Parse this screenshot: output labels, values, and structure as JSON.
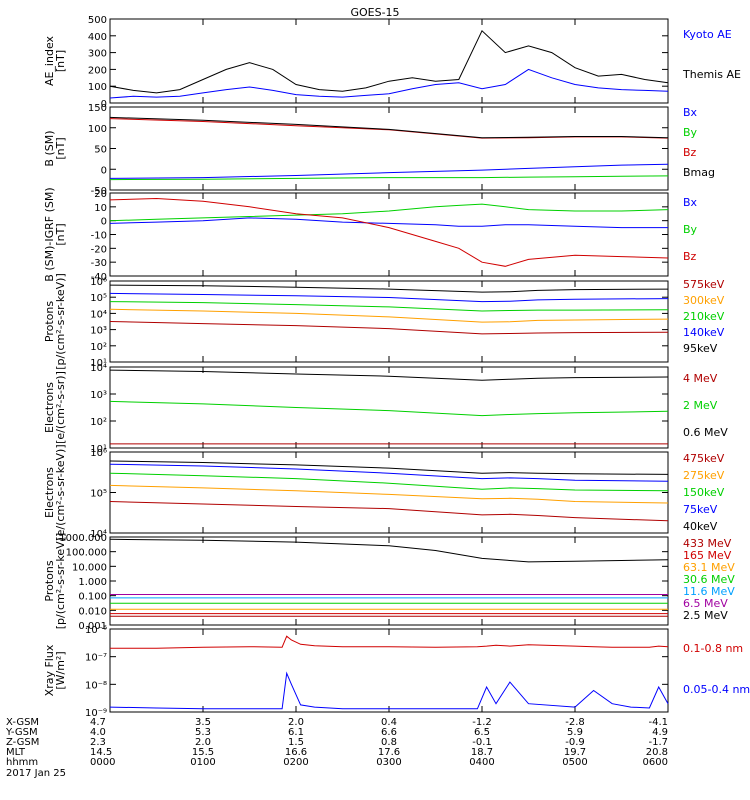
{
  "title": "GOES-15",
  "date": "2017 Jan 25",
  "ephemeris": {
    "row_labels": [
      "X-GSM",
      "Y-GSM",
      "Z-GSM",
      "MLT",
      "hhmm"
    ],
    "rows": [
      [
        "4.7",
        "3.5",
        "2.0",
        "0.4",
        "-1.2",
        "-2.8",
        "-4.1"
      ],
      [
        "4.0",
        "5.3",
        "6.1",
        "6.6",
        "6.5",
        "5.9",
        "4.9"
      ],
      [
        "2.3",
        "2.0",
        "1.5",
        "0.8",
        "-0.1",
        "-0.9",
        "-1.7"
      ],
      [
        "14.5",
        "15.5",
        "16.6",
        "17.6",
        "18.7",
        "19.7",
        "20.8"
      ],
      [
        "0000",
        "0100",
        "0200",
        "0300",
        "0400",
        "0500",
        "0600"
      ]
    ]
  },
  "colors": {
    "black": "#000000",
    "blue": "#0000ff",
    "green": "#00d000",
    "red": "#d00000",
    "darkred": "#b00000",
    "orange": "#ffa000",
    "lightblue": "#00a0ff",
    "purple": "#a000a0",
    "axis": "#000000"
  },
  "chart_data": [
    {
      "type": "line",
      "id": "ae",
      "ylabel": "AE_index\n[nT]",
      "ylim": [
        0,
        500
      ],
      "yticks": [
        "0",
        "100",
        "200",
        "300",
        "400",
        "500"
      ],
      "x": [
        0,
        0.25,
        0.5,
        0.75,
        1.0,
        1.25,
        1.5,
        1.75,
        2.0,
        2.25,
        2.5,
        2.75,
        3.0,
        3.25,
        3.5,
        3.75,
        4.0,
        4.25,
        4.5,
        4.75,
        5.0,
        5.25,
        5.5,
        5.75,
        6.0
      ],
      "series": [
        {
          "name": "Kyoto AE",
          "color": "blue",
          "values": [
            30,
            40,
            35,
            40,
            60,
            80,
            95,
            75,
            50,
            40,
            35,
            45,
            55,
            85,
            110,
            120,
            85,
            110,
            200,
            150,
            110,
            90,
            80,
            75,
            70
          ]
        },
        {
          "name": "Themis AE",
          "color": "black",
          "values": [
            100,
            75,
            60,
            80,
            140,
            200,
            240,
            200,
            110,
            80,
            70,
            90,
            130,
            150,
            130,
            140,
            430,
            300,
            340,
            300,
            210,
            160,
            170,
            140,
            120
          ]
        }
      ]
    },
    {
      "type": "line",
      "id": "bsm",
      "ylabel": "B (SM)\n[nT]",
      "ylim": [
        -50,
        150
      ],
      "yticks": [
        "-50",
        "0",
        "50",
        "100",
        "150"
      ],
      "x": [
        0,
        1,
        2,
        3,
        4,
        4.5,
        5,
        5.5,
        6
      ],
      "series": [
        {
          "name": "Bx",
          "color": "blue",
          "values": [
            -22,
            -20,
            -15,
            -8,
            -2,
            2,
            6,
            10,
            12
          ]
        },
        {
          "name": "By",
          "color": "green",
          "values": [
            -25,
            -24,
            -22,
            -20,
            -20,
            -19,
            -18,
            -17,
            -16
          ]
        },
        {
          "name": "Bz",
          "color": "red",
          "values": [
            122,
            115,
            105,
            95,
            75,
            76,
            78,
            78,
            75
          ]
        },
        {
          "name": "Bmag",
          "color": "black",
          "values": [
            125,
            118,
            108,
            96,
            76,
            77,
            79,
            79,
            76
          ]
        }
      ]
    },
    {
      "type": "line",
      "id": "bigrf",
      "ylabel": "B (SM)-IGRF (SM)\n[nT]",
      "ylim": [
        -40,
        20
      ],
      "yticks": [
        "-40",
        "-30",
        "-20",
        "-10",
        "0",
        "10",
        "20"
      ],
      "x": [
        0,
        0.5,
        1.0,
        1.5,
        2.0,
        2.5,
        3.0,
        3.5,
        3.75,
        4.0,
        4.25,
        4.5,
        5.0,
        5.5,
        6.0
      ],
      "series": [
        {
          "name": "Bx",
          "color": "blue",
          "values": [
            -2,
            -1,
            0,
            2,
            1,
            -1,
            -2,
            -3,
            -4,
            -4,
            -3,
            -3,
            -4,
            -5,
            -5
          ]
        },
        {
          "name": "By",
          "color": "green",
          "values": [
            0,
            1,
            2,
            3,
            4,
            5,
            7,
            10,
            11,
            12,
            10,
            8,
            7,
            7,
            8
          ]
        },
        {
          "name": "Bz",
          "color": "red",
          "values": [
            15,
            16,
            14,
            10,
            5,
            2,
            -5,
            -15,
            -20,
            -30,
            -33,
            -28,
            -25,
            -26,
            -27
          ]
        }
      ]
    },
    {
      "type": "line",
      "id": "protons-mag",
      "log": true,
      "ylabel": "Protons\n[p/(cm²-s-sr-keV)]",
      "ylim": [
        1,
        1000000
      ],
      "yticks": [
        "10¹",
        "10²",
        "10³",
        "10⁴",
        "10⁵",
        "10⁶"
      ],
      "x": [
        0,
        1,
        2,
        3,
        4,
        4.3,
        4.6,
        5,
        6
      ],
      "series": [
        {
          "name": "575keV",
          "color": "darkred",
          "values": [
            1000,
            700,
            500,
            300,
            120,
            130,
            140,
            150,
            160
          ]
        },
        {
          "name": "300keV",
          "color": "orange",
          "values": [
            8000,
            6000,
            4000,
            2200,
            900,
            950,
            1200,
            1300,
            1500
          ]
        },
        {
          "name": "210keV",
          "color": "green",
          "values": [
            30000,
            25000,
            18000,
            12000,
            6000,
            6500,
            7000,
            7000,
            7500
          ]
        },
        {
          "name": "140keV",
          "color": "blue",
          "values": [
            120000,
            100000,
            80000,
            60000,
            30000,
            32000,
            40000,
            45000,
            50000
          ]
        },
        {
          "name": "95keV",
          "color": "black",
          "values": [
            500000,
            450000,
            350000,
            250000,
            150000,
            160000,
            200000,
            230000,
            250000
          ]
        }
      ]
    },
    {
      "type": "line",
      "id": "electrons-mev",
      "log": true,
      "ylabel": "Electrons\n[e/(cm²-s-sr)]",
      "ylim": [
        10,
        100000
      ],
      "yticks": [
        "10¹",
        "10²",
        "10³",
        "10⁴"
      ],
      "x": [
        0,
        1,
        2,
        3,
        4,
        4.3,
        4.6,
        5,
        6
      ],
      "series": [
        {
          "name": "4 MeV",
          "color": "darkred",
          "values": [
            16,
            16,
            16,
            16,
            16,
            16,
            16,
            16,
            16
          ]
        },
        {
          "name": "2 MeV",
          "color": "green",
          "values": [
            2000,
            1500,
            1000,
            700,
            400,
            450,
            500,
            550,
            650
          ]
        },
        {
          "name": "0.6 MeV",
          "color": "black",
          "values": [
            70000,
            60000,
            45000,
            35000,
            22000,
            25000,
            28000,
            30000,
            32000
          ]
        }
      ]
    },
    {
      "type": "line",
      "id": "electrons-kev",
      "log": true,
      "ylabel": "Electrons\n[e/(cm²-s-sr-keV)]",
      "ylim": [
        10000,
        1000000
      ],
      "yticks": [
        "10⁴",
        "10⁵",
        "10⁶"
      ],
      "x": [
        0,
        1,
        2,
        3,
        4,
        4.3,
        4.6,
        5,
        6
      ],
      "series": [
        {
          "name": "475keV",
          "color": "darkred",
          "values": [
            60000,
            52000,
            45000,
            40000,
            28000,
            29000,
            27000,
            24000,
            20000
          ]
        },
        {
          "name": "275keV",
          "color": "orange",
          "values": [
            150000,
            130000,
            110000,
            90000,
            70000,
            72000,
            68000,
            60000,
            55000
          ]
        },
        {
          "name": "150keV",
          "color": "green",
          "values": [
            300000,
            260000,
            220000,
            170000,
            120000,
            130000,
            125000,
            115000,
            110000
          ]
        },
        {
          "name": "75keV",
          "color": "blue",
          "values": [
            500000,
            450000,
            380000,
            300000,
            220000,
            230000,
            220000,
            200000,
            190000
          ]
        },
        {
          "name": "40keV",
          "color": "black",
          "values": [
            600000,
            550000,
            480000,
            400000,
            300000,
            310000,
            300000,
            290000,
            280000
          ]
        }
      ]
    },
    {
      "type": "line",
      "id": "protons-hi",
      "log": true,
      "ylabel": "Protons\n[p/(cm²-s-sr-keV)]",
      "ylim": [
        0.001,
        1000
      ],
      "yticks": [
        "0.001",
        "0.010",
        "0.100",
        "1.000",
        "10.000",
        "100.000",
        "1000.000"
      ],
      "x": [
        0,
        1,
        2,
        3,
        3.5,
        4,
        4.5,
        5,
        5.5,
        6
      ],
      "series": [
        {
          "name": "433 MeV",
          "color": "darkred",
          "values": [
            0.004,
            0.004,
            0.004,
            0.004,
            0.004,
            0.004,
            0.004,
            0.004,
            0.004,
            0.004
          ]
        },
        {
          "name": "165 MeV",
          "color": "red",
          "values": [
            0.006,
            0.006,
            0.006,
            0.006,
            0.006,
            0.006,
            0.006,
            0.006,
            0.006,
            0.006
          ]
        },
        {
          "name": "63.1 MeV",
          "color": "orange",
          "values": [
            0.012,
            0.012,
            0.012,
            0.012,
            0.012,
            0.012,
            0.012,
            0.012,
            0.012,
            0.012
          ]
        },
        {
          "name": "30.6 MeV",
          "color": "green",
          "values": [
            0.03,
            0.03,
            0.03,
            0.03,
            0.03,
            0.03,
            0.03,
            0.03,
            0.03,
            0.03
          ]
        },
        {
          "name": "11.6 MeV",
          "color": "lightblue",
          "values": [
            0.07,
            0.07,
            0.07,
            0.07,
            0.07,
            0.07,
            0.07,
            0.07,
            0.07,
            0.07
          ]
        },
        {
          "name": "6.5 MeV",
          "color": "purple",
          "values": [
            0.12,
            0.12,
            0.12,
            0.12,
            0.12,
            0.12,
            0.12,
            0.12,
            0.12,
            0.12
          ]
        },
        {
          "name": "2.5 MeV",
          "color": "black",
          "values": [
            700,
            600,
            450,
            250,
            120,
            35,
            20,
            22,
            25,
            28
          ]
        }
      ]
    },
    {
      "type": "line",
      "id": "xray",
      "log": true,
      "ylabel": "Xray Flux\n[W/m²]",
      "ylim": [
        1e-09,
        1e-06
      ],
      "yticks": [
        "10⁻⁹",
        "10⁻⁸",
        "10⁻⁷",
        "10⁻⁶"
      ],
      "x": [
        0,
        0.5,
        1.0,
        1.5,
        1.85,
        1.9,
        1.95,
        2.05,
        2.2,
        2.5,
        3.0,
        3.5,
        3.95,
        4.05,
        4.15,
        4.3,
        4.5,
        5.0,
        5.2,
        5.4,
        5.6,
        5.8,
        5.9,
        6.0
      ],
      "series": [
        {
          "name": "0.1-0.8 nm",
          "color": "red",
          "values": [
            2e-07,
            2e-07,
            2.2e-07,
            2.3e-07,
            2.2e-07,
            5.5e-07,
            4e-07,
            2.8e-07,
            2.5e-07,
            2.3e-07,
            2.3e-07,
            2.2e-07,
            2.3e-07,
            2.4e-07,
            2.6e-07,
            2.4e-07,
            2.7e-07,
            2.4e-07,
            2.3e-07,
            2.2e-07,
            2.2e-07,
            2.2e-07,
            2.4e-07,
            2.3e-07
          ]
        },
        {
          "name": "0.05-0.4 nm",
          "color": "blue",
          "values": [
            1.5e-09,
            1.4e-09,
            1.3e-09,
            1.3e-09,
            1.3e-09,
            2.5e-08,
            1e-08,
            1.8e-09,
            1.5e-09,
            1.3e-09,
            1.3e-09,
            1.3e-09,
            1.3e-09,
            8e-09,
            2e-09,
            1.2e-08,
            2e-09,
            1.5e-09,
            6e-09,
            2e-09,
            1.5e-09,
            1.4e-09,
            8e-09,
            2e-09
          ]
        }
      ]
    }
  ]
}
